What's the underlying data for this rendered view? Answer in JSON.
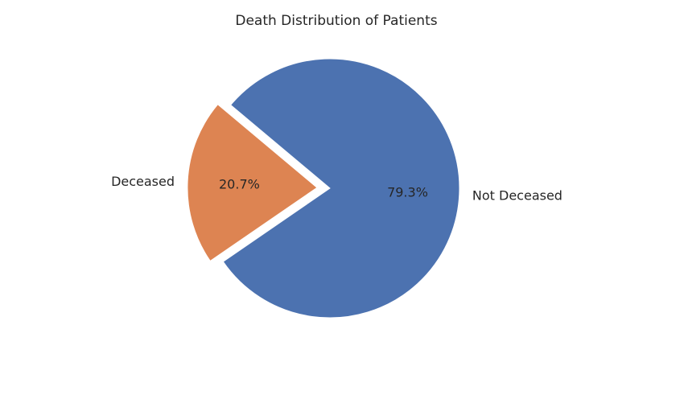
{
  "chart_data": {
    "type": "pie",
    "title": "Death Distribution of Patients",
    "categories": [
      "Not Deceased",
      "Deceased"
    ],
    "values": [
      79.3,
      20.7
    ],
    "percent_labels": [
      "79.3%",
      "20.7%"
    ],
    "explode": [
      0,
      0.1
    ],
    "colors": [
      "#4c72b0",
      "#dd8452"
    ],
    "legend": "none"
  }
}
